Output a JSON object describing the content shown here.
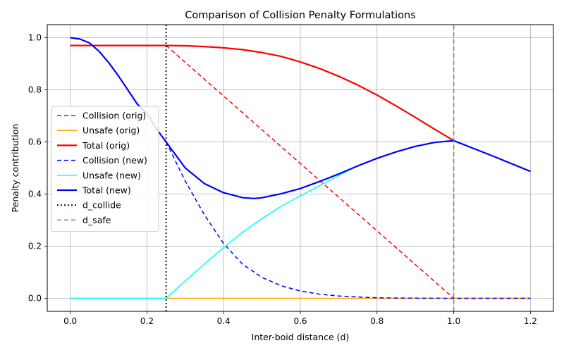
{
  "chart_data": {
    "type": "line",
    "title": "Comparison of Collision Penalty Formulations",
    "xlabel": "Inter-boid distance (d)",
    "ylabel": "Penalty contribution",
    "xlim": [
      -0.06,
      1.26
    ],
    "ylim": [
      -0.05,
      1.05
    ],
    "xticks": [
      "0.0",
      "0.2",
      "0.4",
      "0.6",
      "0.8",
      "1.0",
      "1.2"
    ],
    "xtick_values": [
      0.0,
      0.2,
      0.4,
      0.6,
      0.8,
      1.0,
      1.2
    ],
    "yticks": [
      "0.0",
      "0.2",
      "0.4",
      "0.6",
      "0.8",
      "1.0"
    ],
    "ytick_values": [
      0.0,
      0.2,
      0.4,
      0.6,
      0.8,
      1.0
    ],
    "grid": true,
    "legend_position": "center-left",
    "series": [
      {
        "name": "Collision (orig)",
        "color": "#ff0000",
        "style": "dashed",
        "width": 1.5,
        "x": [
          0.25,
          1.0,
          1.2
        ],
        "y": [
          0.97,
          0.0,
          0.0
        ]
      },
      {
        "name": "Unsafe (orig)",
        "color": "#ffa500",
        "style": "solid",
        "width": 1.5,
        "x": [
          0.0,
          1.0,
          1.2
        ],
        "y": [
          0.0,
          0.0,
          0.0
        ]
      },
      {
        "name": "Total (orig)",
        "color": "#ff0000",
        "style": "solid",
        "width": 2.2,
        "x": [
          0.0,
          0.25,
          0.3,
          0.35,
          0.4,
          0.45,
          0.5,
          0.55,
          0.6,
          0.65,
          0.7,
          0.75,
          0.8,
          0.85,
          0.9,
          0.95,
          1.0
        ],
        "y": [
          0.97,
          0.97,
          0.969,
          0.966,
          0.961,
          0.954,
          0.943,
          0.928,
          0.907,
          0.882,
          0.852,
          0.818,
          0.78,
          0.738,
          0.694,
          0.649,
          0.605
        ]
      },
      {
        "name": "Collision (new)",
        "color": "#0000ff",
        "style": "dashed",
        "width": 1.5,
        "x": [
          0.25,
          0.3,
          0.35,
          0.4,
          0.45,
          0.5,
          0.55,
          0.6,
          0.65,
          0.7,
          0.75,
          0.8,
          0.85,
          0.9,
          0.95,
          1.0,
          1.1,
          1.2
        ],
        "y": [
          0.6,
          0.45,
          0.32,
          0.21,
          0.13,
          0.08,
          0.048,
          0.028,
          0.016,
          0.009,
          0.005,
          0.002,
          0.001,
          0.0005,
          0.0002,
          0.0,
          0.0,
          0.0
        ]
      },
      {
        "name": "Unsafe (new)",
        "color": "#00ffff",
        "style": "solid",
        "width": 1.5,
        "x": [
          0.0,
          0.25,
          0.3,
          0.35,
          0.4,
          0.45,
          0.5,
          0.55,
          0.6,
          0.65,
          0.7,
          0.75,
          0.8,
          0.85,
          0.9,
          0.95,
          1.0,
          1.1,
          1.2
        ],
        "y": [
          0.0,
          0.0,
          0.067,
          0.132,
          0.195,
          0.254,
          0.306,
          0.353,
          0.393,
          0.432,
          0.472,
          0.508,
          0.537,
          0.562,
          0.583,
          0.598,
          0.605,
          0.547,
          0.487
        ]
      },
      {
        "name": "Total (new)",
        "color": "#0000ff",
        "style": "solid",
        "width": 2.2,
        "x": [
          0.0,
          0.025,
          0.05,
          0.075,
          0.1,
          0.125,
          0.15,
          0.175,
          0.2,
          0.225,
          0.25,
          0.3,
          0.35,
          0.4,
          0.45,
          0.48,
          0.5,
          0.55,
          0.6,
          0.65,
          0.7,
          0.75,
          0.8,
          0.85,
          0.9,
          0.95,
          1.0,
          1.1,
          1.2
        ],
        "y": [
          1.0,
          0.995,
          0.98,
          0.948,
          0.905,
          0.855,
          0.8,
          0.745,
          0.71,
          0.65,
          0.6,
          0.5,
          0.44,
          0.405,
          0.386,
          0.383,
          0.386,
          0.401,
          0.421,
          0.448,
          0.477,
          0.508,
          0.537,
          0.562,
          0.583,
          0.598,
          0.605,
          0.547,
          0.487
        ]
      },
      {
        "name": "d_collide",
        "color": "#000000",
        "style": "dotted",
        "width": 1.8,
        "x": [
          0.25,
          0.25
        ],
        "y": [
          -0.05,
          1.05
        ]
      },
      {
        "name": "d_safe",
        "color": "#808080",
        "style": "dashed",
        "width": 1.5,
        "x": [
          1.0,
          1.0
        ],
        "y": [
          -0.05,
          1.05
        ]
      }
    ]
  }
}
